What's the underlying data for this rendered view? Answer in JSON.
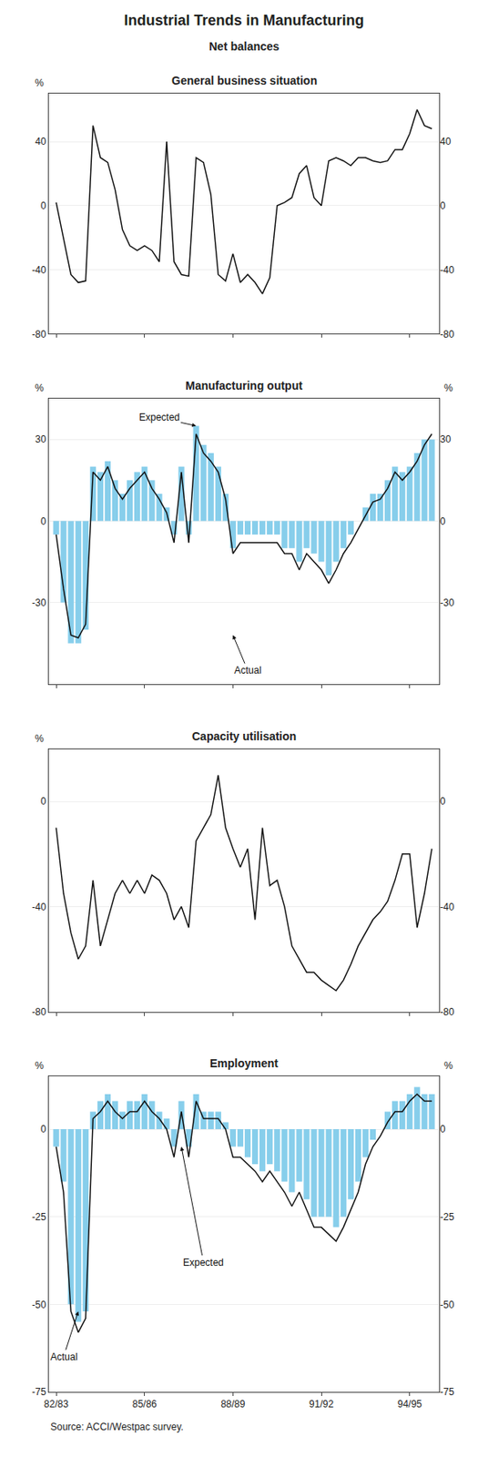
{
  "title": "Industrial Trends in Manufacturing",
  "subtitle": "Net balances",
  "source": "Source: ACCI/Westpac survey.",
  "chart_data": [
    {
      "type": "line",
      "title": "General business situation",
      "ylabel": "%",
      "categories": [
        "82/83",
        null,
        null,
        null,
        null,
        null,
        null,
        null,
        null,
        null,
        null,
        null,
        "85/86",
        null,
        null,
        null,
        null,
        null,
        null,
        null,
        null,
        null,
        null,
        null,
        "88/89",
        null,
        null,
        null,
        null,
        null,
        null,
        null,
        null,
        null,
        null,
        null,
        "91/92",
        null,
        null,
        null,
        null,
        null,
        null,
        null,
        null,
        null,
        null,
        null,
        "94/95",
        null,
        null,
        null
      ],
      "series": [
        {
          "type": "line",
          "color": "#111111",
          "values": [
            2,
            -20,
            -43,
            -48,
            -47,
            50,
            30,
            27,
            10,
            -15,
            -25,
            -28,
            -25,
            -28,
            -35,
            40,
            -35,
            -43,
            -44,
            30,
            27,
            7,
            -43,
            -47,
            -30,
            -48,
            -43,
            -48,
            -55,
            -45,
            0,
            2,
            5,
            20,
            25,
            5,
            0,
            28,
            30,
            28,
            25,
            30,
            30,
            28,
            27,
            28,
            35,
            35,
            45,
            60,
            50,
            48
          ]
        }
      ],
      "ylim": [
        -80,
        70
      ],
      "yticks": [
        -80,
        -40,
        0,
        40
      ],
      "y2lim": [
        -80,
        70
      ],
      "y2ticks": [
        -80,
        -40,
        0,
        40
      ],
      "grid": true,
      "tick_labels": "y"
    },
    {
      "type": "bar",
      "title": "Manufacturing output",
      "ylabel": "%",
      "y2label": "%",
      "categories": [
        "82/83",
        null,
        null,
        null,
        null,
        null,
        null,
        null,
        null,
        null,
        null,
        null,
        "85/86",
        null,
        null,
        null,
        null,
        null,
        null,
        null,
        null,
        null,
        null,
        null,
        "88/89",
        null,
        null,
        null,
        null,
        null,
        null,
        null,
        null,
        null,
        null,
        null,
        "91/92",
        null,
        null,
        null,
        null,
        null,
        null,
        null,
        null,
        null,
        null,
        null,
        "94/95",
        null,
        null,
        null
      ],
      "series": [
        {
          "type": "bar",
          "color": "#87ceeb",
          "values": [
            -5,
            -30,
            -45,
            -45,
            -40,
            20,
            18,
            22,
            15,
            10,
            15,
            18,
            20,
            15,
            10,
            5,
            -5,
            20,
            -5,
            35,
            28,
            25,
            20,
            10,
            -10,
            -5,
            -5,
            -5,
            -5,
            -5,
            -5,
            -10,
            -10,
            -15,
            -10,
            -12,
            -15,
            -20,
            -15,
            -10,
            -5,
            0,
            5,
            10,
            10,
            15,
            20,
            18,
            20,
            25,
            30,
            30
          ]
        },
        {
          "type": "line",
          "color": "#111111",
          "values": [
            -5,
            -25,
            -42,
            -43,
            -38,
            18,
            15,
            20,
            12,
            8,
            12,
            15,
            18,
            12,
            8,
            3,
            -8,
            18,
            -8,
            32,
            25,
            22,
            18,
            8,
            -12,
            -8,
            -8,
            -8,
            -8,
            -8,
            -8,
            -12,
            -12,
            -18,
            -12,
            -15,
            -18,
            -23,
            -18,
            -12,
            -8,
            -3,
            2,
            7,
            8,
            12,
            18,
            15,
            18,
            22,
            28,
            32
          ]
        }
      ],
      "annotations": [
        {
          "text": "Expected",
          "x": 19,
          "y": 35,
          "text_x": 14,
          "text_y": 38
        },
        {
          "text": "Actual",
          "x": 24,
          "y": -42,
          "text_x": 26,
          "text_y": -55
        }
      ],
      "ylim": [
        -60,
        45
      ],
      "yticks": [
        -30,
        0,
        30
      ],
      "y2lim": [
        -60,
        45
      ],
      "y2ticks": [
        -30,
        0,
        30
      ],
      "grid": true,
      "tick_labels": "y"
    },
    {
      "type": "line",
      "title": "Capacity utilisation",
      "ylabel": "%",
      "categories": [
        "82/83",
        null,
        null,
        null,
        null,
        null,
        null,
        null,
        null,
        null,
        null,
        null,
        "85/86",
        null,
        null,
        null,
        null,
        null,
        null,
        null,
        null,
        null,
        null,
        null,
        "88/89",
        null,
        null,
        null,
        null,
        null,
        null,
        null,
        null,
        null,
        null,
        null,
        "91/92",
        null,
        null,
        null,
        null,
        null,
        null,
        null,
        null,
        null,
        null,
        null,
        "94/95",
        null,
        null,
        null
      ],
      "series": [
        {
          "type": "line",
          "color": "#111111",
          "values": [
            -10,
            -35,
            -50,
            -60,
            -55,
            -30,
            -55,
            -45,
            -35,
            -30,
            -35,
            -30,
            -35,
            -28,
            -30,
            -35,
            -45,
            -40,
            -48,
            -15,
            -10,
            -5,
            10,
            -10,
            -18,
            -25,
            -18,
            -45,
            -10,
            -32,
            -30,
            -40,
            -55,
            -60,
            -65,
            -65,
            -68,
            -70,
            -72,
            -68,
            -62,
            -55,
            -50,
            -45,
            -42,
            -38,
            -30,
            -20,
            -20,
            -48,
            -35,
            -18
          ]
        }
      ],
      "ylim": [
        -80,
        20
      ],
      "yticks": [
        -80,
        -40,
        0
      ],
      "y2lim": [
        -80,
        20
      ],
      "y2ticks": [
        -80,
        -40,
        0
      ],
      "grid": true,
      "tick_labels": "y"
    },
    {
      "type": "bar",
      "title": "Employment",
      "ylabel": "%",
      "y2label": "%",
      "categories": [
        "82/83",
        null,
        null,
        null,
        null,
        null,
        null,
        null,
        null,
        null,
        null,
        null,
        "85/86",
        null,
        null,
        null,
        null,
        null,
        null,
        null,
        null,
        null,
        null,
        null,
        "88/89",
        null,
        null,
        null,
        null,
        null,
        null,
        null,
        null,
        null,
        null,
        null,
        "91/92",
        null,
        null,
        null,
        null,
        null,
        null,
        null,
        null,
        null,
        null,
        null,
        "94/95",
        null,
        null,
        null
      ],
      "series": [
        {
          "type": "bar",
          "color": "#87ceeb",
          "values": [
            -5,
            -15,
            -50,
            -55,
            -52,
            5,
            8,
            10,
            8,
            5,
            8,
            8,
            10,
            8,
            5,
            3,
            -5,
            8,
            -5,
            10,
            5,
            5,
            5,
            2,
            -5,
            -5,
            -8,
            -10,
            -12,
            -10,
            -12,
            -15,
            -18,
            -15,
            -20,
            -25,
            -25,
            -25,
            -28,
            -25,
            -20,
            -15,
            -8,
            -3,
            0,
            5,
            8,
            8,
            10,
            12,
            10,
            10
          ]
        },
        {
          "type": "line",
          "color": "#111111",
          "values": [
            -5,
            -18,
            -52,
            -58,
            -54,
            3,
            5,
            8,
            5,
            3,
            5,
            5,
            8,
            5,
            3,
            0,
            -8,
            5,
            -8,
            8,
            3,
            3,
            3,
            0,
            -8,
            -8,
            -10,
            -12,
            -15,
            -12,
            -15,
            -18,
            -22,
            -18,
            -23,
            -28,
            -28,
            -30,
            -32,
            -28,
            -23,
            -18,
            -10,
            -5,
            -2,
            2,
            5,
            5,
            8,
            10,
            8,
            8
          ]
        }
      ],
      "annotations": [
        {
          "text": "Expected",
          "x": 17,
          "y": -5,
          "text_x": 20,
          "text_y": -38
        },
        {
          "text": "Actual",
          "x": 3,
          "y": -52,
          "text_x": 1,
          "text_y": -65
        }
      ],
      "ylim": [
        -75,
        15
      ],
      "yticks": [
        -75,
        -50,
        -25,
        0
      ],
      "y2lim": [
        -75,
        15
      ],
      "y2ticks": [
        -75,
        -50,
        -25,
        0
      ],
      "grid": true
    }
  ]
}
